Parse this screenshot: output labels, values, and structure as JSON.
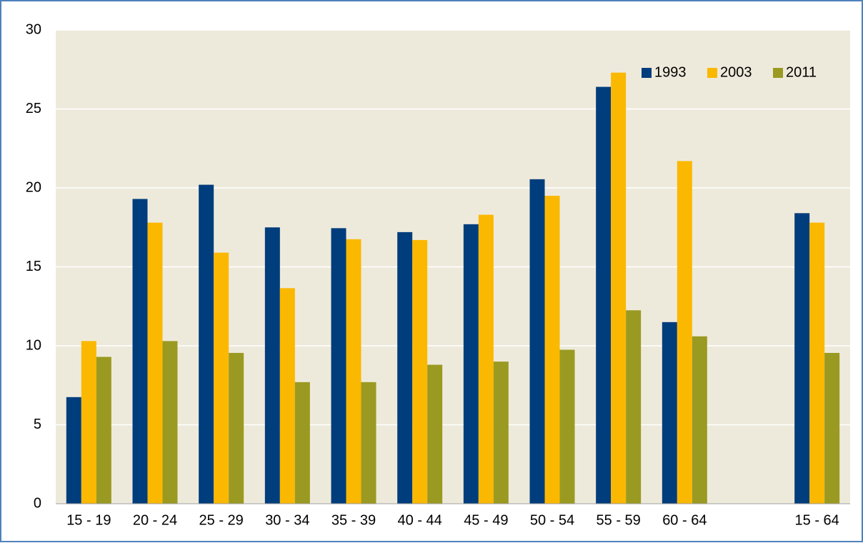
{
  "chart_data": {
    "type": "bar",
    "categories": [
      "15 - 19",
      "20 - 24",
      "25 - 29",
      "30 - 34",
      "35 - 39",
      "40 - 44",
      "45 - 49",
      "50 - 54",
      "55 - 59",
      "60 - 64",
      null,
      "15 - 64"
    ],
    "series": [
      {
        "name": "1993",
        "color": "#003d7c",
        "values": [
          6.75,
          19.3,
          20.2,
          17.5,
          17.45,
          17.2,
          17.7,
          20.55,
          26.4,
          11.5,
          null,
          18.4
        ]
      },
      {
        "name": "2003",
        "color": "#fbb800",
        "values": [
          10.3,
          17.8,
          15.9,
          13.65,
          16.75,
          16.7,
          18.3,
          19.5,
          27.3,
          21.7,
          null,
          17.8
        ]
      },
      {
        "name": "2011",
        "color": "#9a9a22",
        "values": [
          9.3,
          10.3,
          9.55,
          7.7,
          7.7,
          8.8,
          9.0,
          9.75,
          12.25,
          10.6,
          null,
          9.55
        ]
      }
    ],
    "ylim": [
      0,
      30
    ],
    "yticks": [
      0,
      5,
      10,
      15,
      20,
      25,
      30
    ],
    "grid": true,
    "legend": "top-right"
  }
}
